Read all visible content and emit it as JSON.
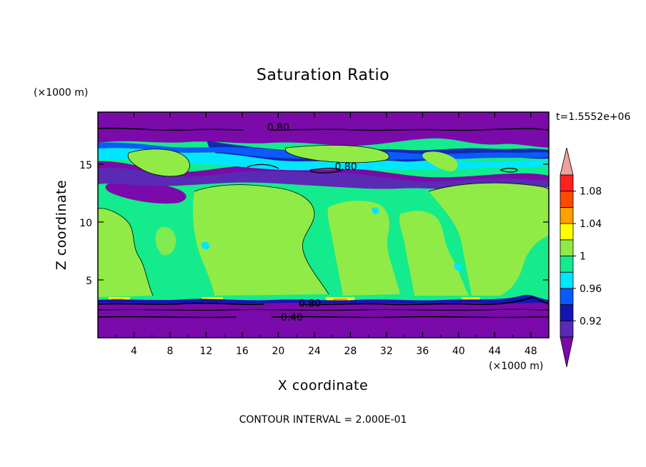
{
  "chart_data": {
    "type": "heatmap",
    "title": "Saturation Ratio",
    "xlabel": "X coordinate",
    "ylabel": "Z coordinate",
    "x_unit": "(×1000 m)",
    "y_unit": "(×1000 m)",
    "xlim": [
      0,
      50
    ],
    "ylim": [
      0,
      19.5
    ],
    "x_ticks": [
      4,
      8,
      12,
      16,
      20,
      24,
      28,
      32,
      36,
      40,
      44,
      48
    ],
    "y_ticks": [
      5,
      10,
      15
    ],
    "x_tick_labels": [
      "4",
      "8",
      "12",
      "16",
      "20",
      "24",
      "28",
      "32",
      "36",
      "40",
      "44",
      "48"
    ],
    "y_tick_labels": [
      "5",
      "10",
      "15"
    ],
    "time_label": "t=1.5552e+06",
    "footer": "CONTOUR INTERVAL = 2.000E-01",
    "colorbar": {
      "boundaries": [
        0.9,
        0.92,
        0.94,
        0.96,
        0.98,
        1.0,
        1.02,
        1.04,
        1.06,
        1.08,
        1.1
      ],
      "labels": [
        "0.92",
        "0.96",
        "1",
        "1.04",
        "1.08"
      ],
      "label_values": [
        0.92,
        0.96,
        1.0,
        1.04,
        1.08
      ],
      "colors": [
        "#5a2ab4",
        "#1414b4",
        "#0a5aff",
        "#00e6ff",
        "#14eb8c",
        "#90eb46",
        "#ffff00",
        "#ffa000",
        "#ff4a00",
        "#ff2020"
      ],
      "under_color": "#7a0aaa",
      "over_color": "#f0a0a0"
    },
    "contour_lines": [
      {
        "label": "0.80",
        "label_position": [
          20,
          18.2
        ]
      },
      {
        "label": "0.80",
        "label_position": [
          27.5,
          14.8
        ]
      },
      {
        "label": "0.80",
        "label_position": [
          23.5,
          3.0
        ]
      },
      {
        "label": "0.40",
        "label_position": [
          21.5,
          1.8
        ]
      }
    ],
    "colors": {
      "under": "#7a0aaa",
      "band_092": "#5a2ab4",
      "band_094": "#1414b4",
      "band_096": "#0a5aff",
      "band_098": "#00e6ff",
      "band_100": "#14eb8c",
      "band_102": "#90eb46",
      "band_104": "#ffff00",
      "band_106": "#ffa000"
    }
  }
}
